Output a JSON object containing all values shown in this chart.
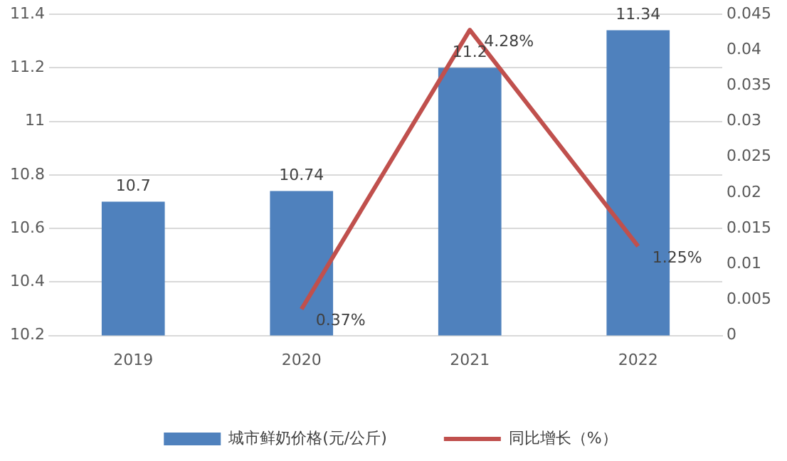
{
  "chart_data": {
    "type": "bar",
    "categories": [
      "2019",
      "2020",
      "2021",
      "2022"
    ],
    "series": [
      {
        "name": "城市鲜奶价格(元/公斤)",
        "color": "#4f81bd",
        "values": [
          10.7,
          10.74,
          11.2,
          11.34
        ],
        "value_labels": [
          "10.7",
          "10.74",
          "11.2",
          "11.34"
        ]
      },
      {
        "name": "同比增长（%）",
        "type": "line",
        "axis": "y2",
        "color": "#c0504d",
        "values": [
          null,
          0.0037,
          0.0428,
          0.0125
        ],
        "value_labels": [
          null,
          "0.37%",
          "4.28%",
          "1.25%"
        ]
      }
    ],
    "ylim": [
      10.2,
      11.4
    ],
    "yticks": [
      10.2,
      10.4,
      10.6,
      10.8,
      11,
      11.2,
      11.4
    ],
    "y2lim": [
      0,
      0.045
    ],
    "y2ticks": [
      0,
      0.005,
      0.01,
      0.015,
      0.02,
      0.025,
      0.03,
      0.035,
      0.04,
      0.045
    ],
    "grid": "y",
    "legend": "bottom",
    "marker": "none",
    "line_style": "solid"
  }
}
